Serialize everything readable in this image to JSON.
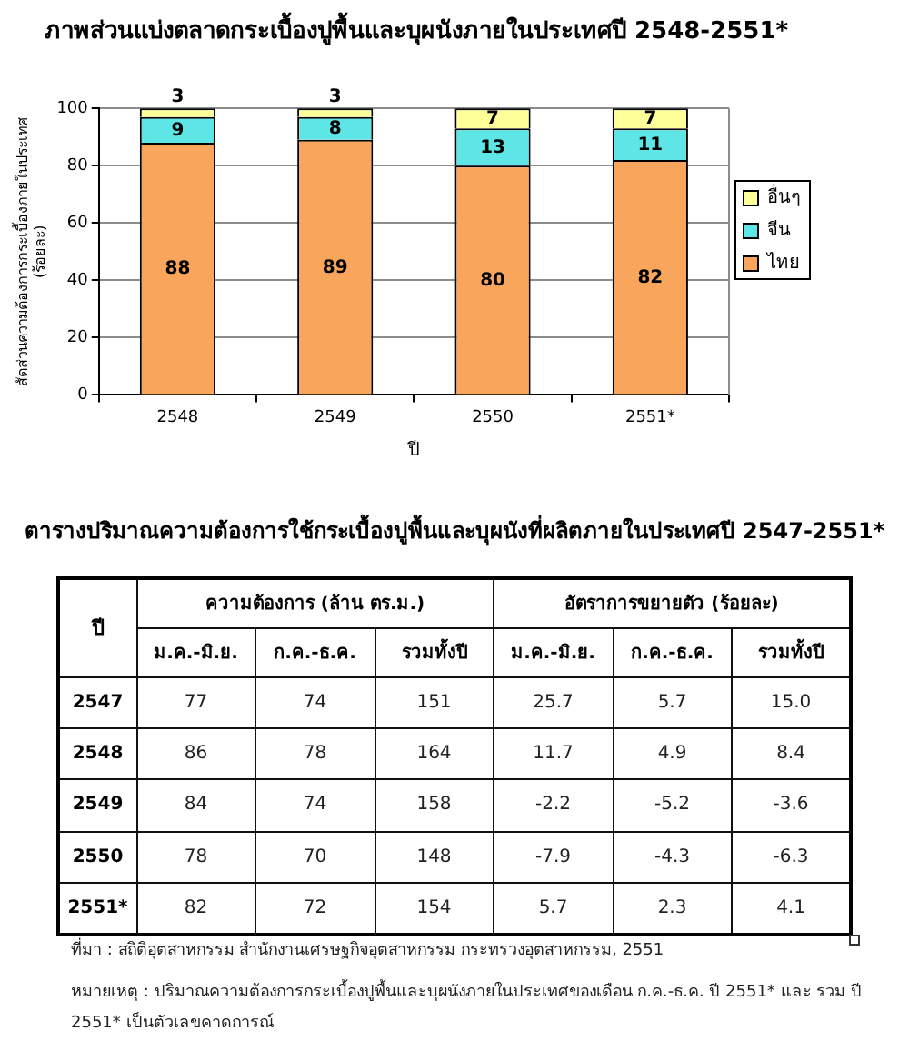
{
  "chart_data": [
    {
      "type": "bar",
      "title": "ภาพส่วนแบ่งตลาดกระเบื้องปูพื้นและบุผนังภายในประเทศปี 2548-2551*",
      "xlabel": "ปี",
      "ylabel": "สัดส่วนความต้องการกระเบื้องภายในประเทศ (ร้อยละ)",
      "categories": [
        "2548",
        "2549",
        "2550",
        "2551*"
      ],
      "stacked": true,
      "series": [
        {
          "name": "ไทย",
          "color": "#f9a55c",
          "values": [
            88,
            89,
            80,
            82
          ]
        },
        {
          "name": "จีน",
          "color": "#5ee6e6",
          "values": [
            9,
            8,
            13,
            11
          ]
        },
        {
          "name": "อื่นๆ",
          "color": "#ffff99",
          "values": [
            3,
            3,
            7,
            7
          ]
        }
      ],
      "ylim": [
        0,
        100
      ],
      "yticks": [
        0,
        20,
        40,
        60,
        80,
        100
      ],
      "data_labels": true,
      "legend": "right",
      "grid": "y"
    },
    {
      "type": "heatmap",
      "title": "ตารางปริมาณความต้องการใช้กระเบื้องปูพื้นและบุผนังที่ผลิตภายในประเทศปี 2547-2551*",
      "ylabel": "ปี",
      "categories": [
        "ม.ค.-มิ.ย.",
        "ก.ค.-ธ.ค.",
        "รวมทั้งปี",
        "ม.ค.-มิ.ย.",
        "ก.ค.-ธ.ค.",
        "รวมทั้งปี"
      ],
      "y_categories": [
        "2547",
        "2548",
        "2549",
        "2550",
        "2551*"
      ],
      "cells": [
        [
          77,
          74,
          151,
          25.7,
          5.7,
          15.0
        ],
        [
          86,
          78,
          164,
          11.7,
          4.9,
          8.4
        ],
        [
          84,
          74,
          158,
          -2.2,
          -5.2,
          -3.6
        ],
        [
          78,
          70,
          148,
          -7.9,
          -4.3,
          -6.3
        ],
        [
          82,
          72,
          154,
          5.7,
          2.3,
          4.1
        ]
      ],
      "cell_labels": [
        [
          "77",
          "74",
          "151",
          "25.7",
          "5.7",
          "15.0"
        ],
        [
          "86",
          "78",
          "164",
          "11.7",
          "4.9",
          "8.4"
        ],
        [
          "84",
          "74",
          "158",
          "-2.2",
          "-5.2",
          "-3.6"
        ],
        [
          "78",
          "70",
          "148",
          "-7.9",
          "-4.3",
          "-6.3"
        ],
        [
          "82",
          "72",
          "154",
          "5.7",
          "2.3",
          "4.1"
        ]
      ],
      "annotations": [
        "ความต้องการ (ล้าน ตร.ม.)",
        "อัตราการขยายตัว (ร้อยละ)",
        "ที่มา : สถิติอุตสาหกรรม สำนักงานเศรษฐกิจอุตสาหกรรม กระทรวงอุตสาหกรรม, 2551",
        "หมายเหตุ : ปริมาณความต้องการกระเบื้องปูพื้นและบุผนังภายในประเทศของเดือน ก.ค.-ธ.ค. ปี 2551* และ รวม ปี 2551* เป็นตัวเลขคาดการณ์"
      ]
    }
  ]
}
